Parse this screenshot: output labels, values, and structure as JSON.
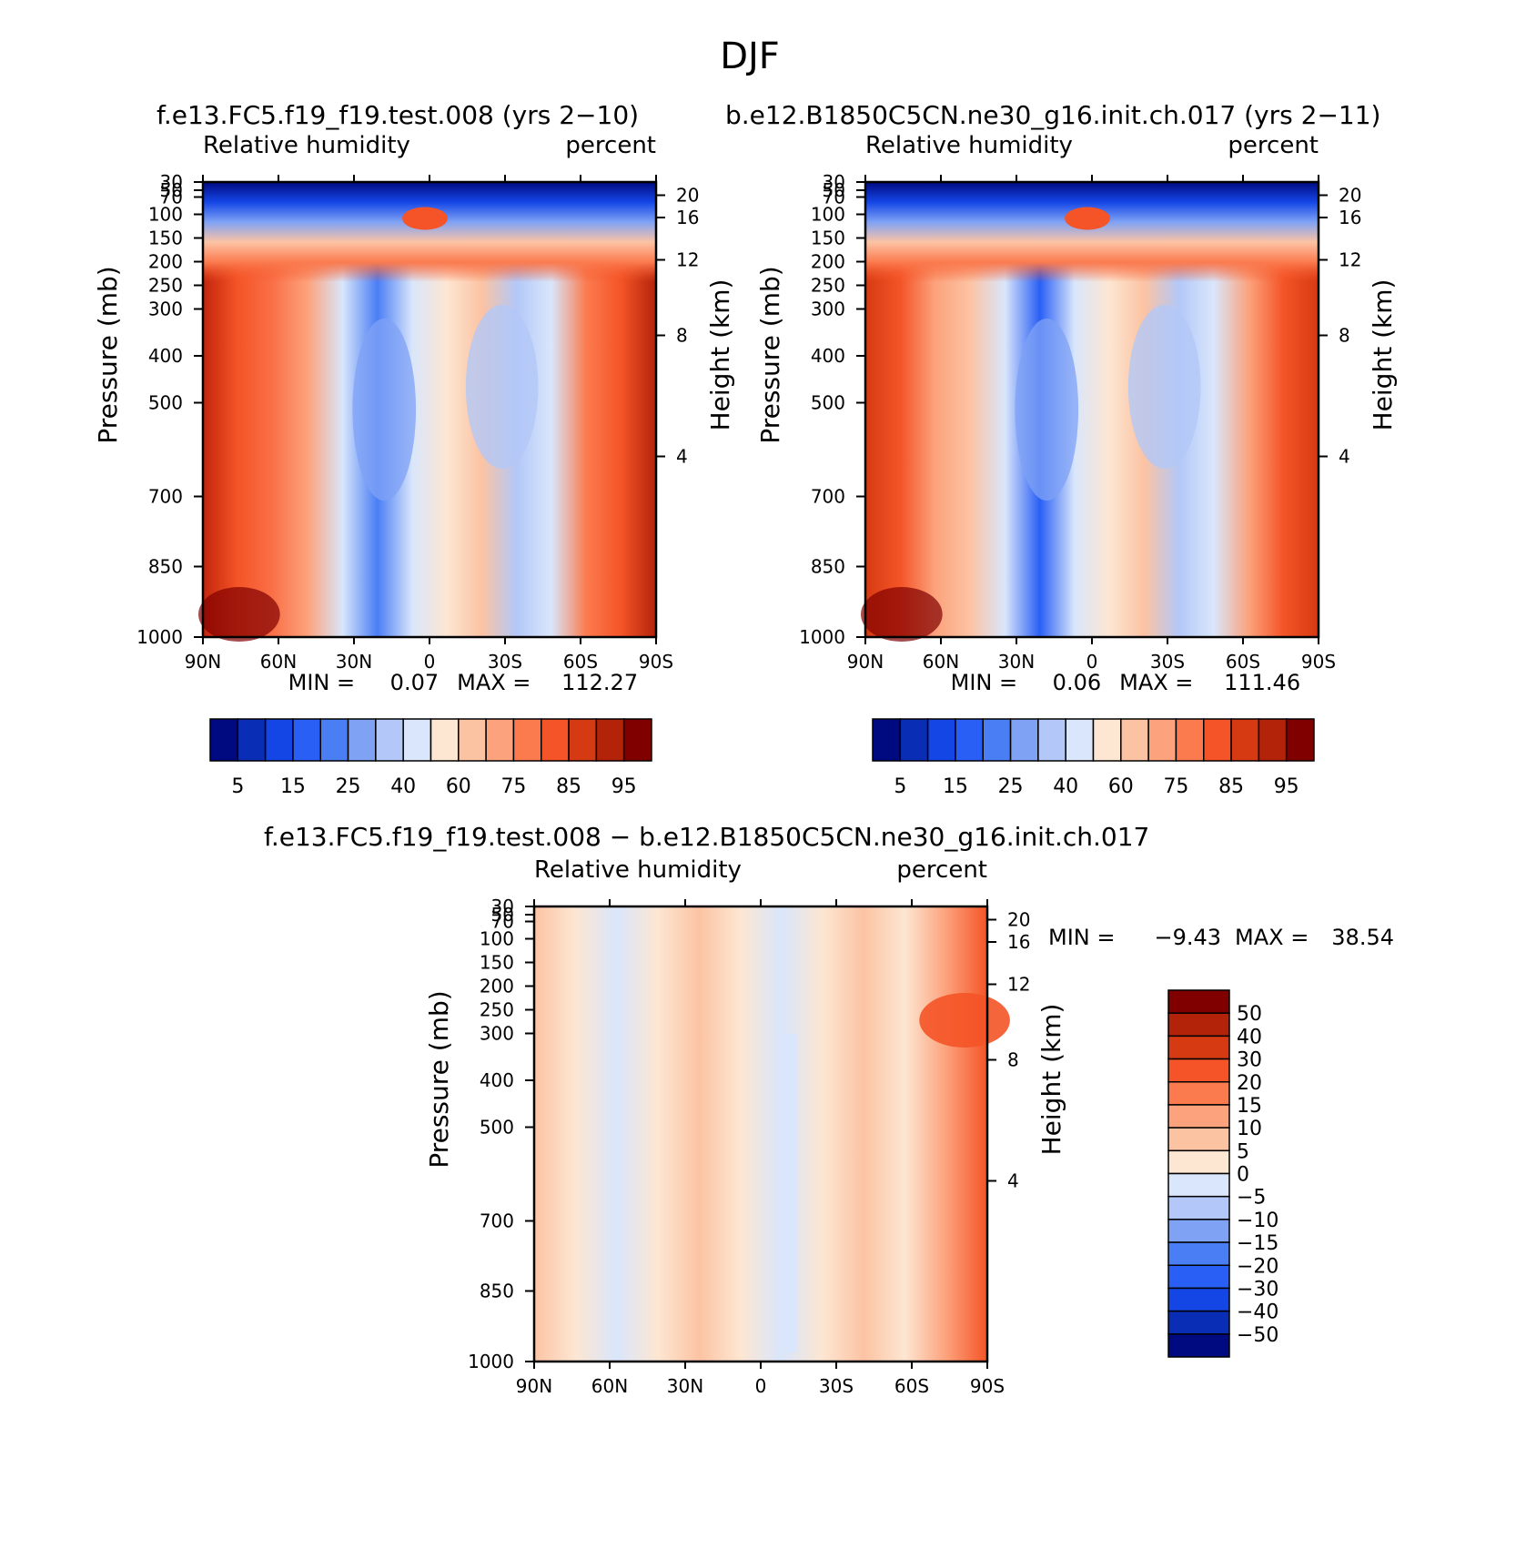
{
  "page": {
    "title": "DJF"
  },
  "chart_data": [
    {
      "type": "contour",
      "id": "panel_a",
      "title": "f.e13.FC5.f19_f19.test.008 (yrs 2−10)",
      "subtitle_left": "Relative humidity",
      "subtitle_right": "percent",
      "xlabel": "",
      "ylabel_left": "Pressure (mb)",
      "ylabel_right": "Height (km)",
      "x_tick_labels": [
        "90N",
        "60N",
        "30N",
        "0",
        "30S",
        "60S",
        "90S"
      ],
      "x_range": [
        90,
        -90
      ],
      "y_tick_labels": [
        "30",
        "50",
        "70",
        "100",
        "150",
        "200",
        "250",
        "300",
        "400",
        "500",
        "700",
        "850",
        "1000"
      ],
      "y_range_mb": [
        30,
        1000
      ],
      "height_tick_labels": [
        "20",
        "16",
        "12",
        "8",
        "4"
      ],
      "min_label": "MIN =",
      "min_value": "0.07",
      "max_label": "MAX =",
      "max_value": "112.27",
      "colorbar": {
        "orientation": "horizontal",
        "colors": [
          "#000a80",
          "#0a2db5",
          "#1446e6",
          "#2a5ff5",
          "#4a7ef5",
          "#7fa2f5",
          "#b3c8f8",
          "#d9e6fb",
          "#fde6d2",
          "#fcc3a3",
          "#fca27c",
          "#fb7b4f",
          "#f45427",
          "#d63a12",
          "#b3230a",
          "#800000"
        ],
        "labels": [
          "5",
          "15",
          "25",
          "40",
          "60",
          "75",
          "85",
          "95"
        ]
      }
    },
    {
      "type": "contour",
      "id": "panel_b",
      "title": "b.e12.B1850C5CN.ne30_g16.init.ch.017 (yrs 2−11)",
      "subtitle_left": "Relative humidity",
      "subtitle_right": "percent",
      "xlabel": "",
      "ylabel_left": "Pressure (mb)",
      "ylabel_right": "Height (km)",
      "x_tick_labels": [
        "90N",
        "60N",
        "30N",
        "0",
        "30S",
        "60S",
        "90S"
      ],
      "x_range": [
        90,
        -90
      ],
      "y_tick_labels": [
        "30",
        "50",
        "70",
        "100",
        "150",
        "200",
        "250",
        "300",
        "400",
        "500",
        "700",
        "850",
        "1000"
      ],
      "y_range_mb": [
        30,
        1000
      ],
      "height_tick_labels": [
        "20",
        "16",
        "12",
        "8",
        "4"
      ],
      "min_label": "MIN =",
      "min_value": "0.06",
      "max_label": "MAX =",
      "max_value": "111.46",
      "colorbar": {
        "orientation": "horizontal",
        "colors": [
          "#000a80",
          "#0a2db5",
          "#1446e6",
          "#2a5ff5",
          "#4a7ef5",
          "#7fa2f5",
          "#b3c8f8",
          "#d9e6fb",
          "#fde6d2",
          "#fcc3a3",
          "#fca27c",
          "#fb7b4f",
          "#f45427",
          "#d63a12",
          "#b3230a",
          "#800000"
        ],
        "labels": [
          "5",
          "15",
          "25",
          "40",
          "60",
          "75",
          "85",
          "95"
        ]
      }
    },
    {
      "type": "contour",
      "id": "panel_diff",
      "title": "f.e13.FC5.f19_f19.test.008 − b.e12.B1850C5CN.ne30_g16.init.ch.017",
      "subtitle_left": "Relative humidity",
      "subtitle_right": "percent",
      "xlabel": "",
      "ylabel_left": "Pressure (mb)",
      "ylabel_right": "Height (km)",
      "x_tick_labels": [
        "90N",
        "60N",
        "30N",
        "0",
        "30S",
        "60S",
        "90S"
      ],
      "x_range": [
        90,
        -90
      ],
      "y_tick_labels": [
        "30",
        "50",
        "70",
        "100",
        "150",
        "200",
        "250",
        "300",
        "400",
        "500",
        "700",
        "850",
        "1000"
      ],
      "y_range_mb": [
        30,
        1000
      ],
      "height_tick_labels": [
        "20",
        "16",
        "12",
        "8",
        "4"
      ],
      "min_label": "MIN =",
      "min_value": "−9.43",
      "max_label": "MAX =",
      "max_value": "38.54",
      "colorbar": {
        "orientation": "vertical",
        "colors_top_to_bottom": [
          "#800000",
          "#b3230a",
          "#d63a12",
          "#f45427",
          "#fb7b4f",
          "#fca27c",
          "#fcc3a3",
          "#fde6d2",
          "#d9e6fb",
          "#b3c8f8",
          "#7fa2f5",
          "#4a7ef5",
          "#2a5ff5",
          "#1446e6",
          "#0a2db5",
          "#000a80"
        ],
        "labels_top_to_bottom": [
          "50",
          "40",
          "30",
          "20",
          "15",
          "10",
          "5",
          "0",
          "−5",
          "−10",
          "−15",
          "−20",
          "−30",
          "−40",
          "−50"
        ]
      }
    }
  ]
}
